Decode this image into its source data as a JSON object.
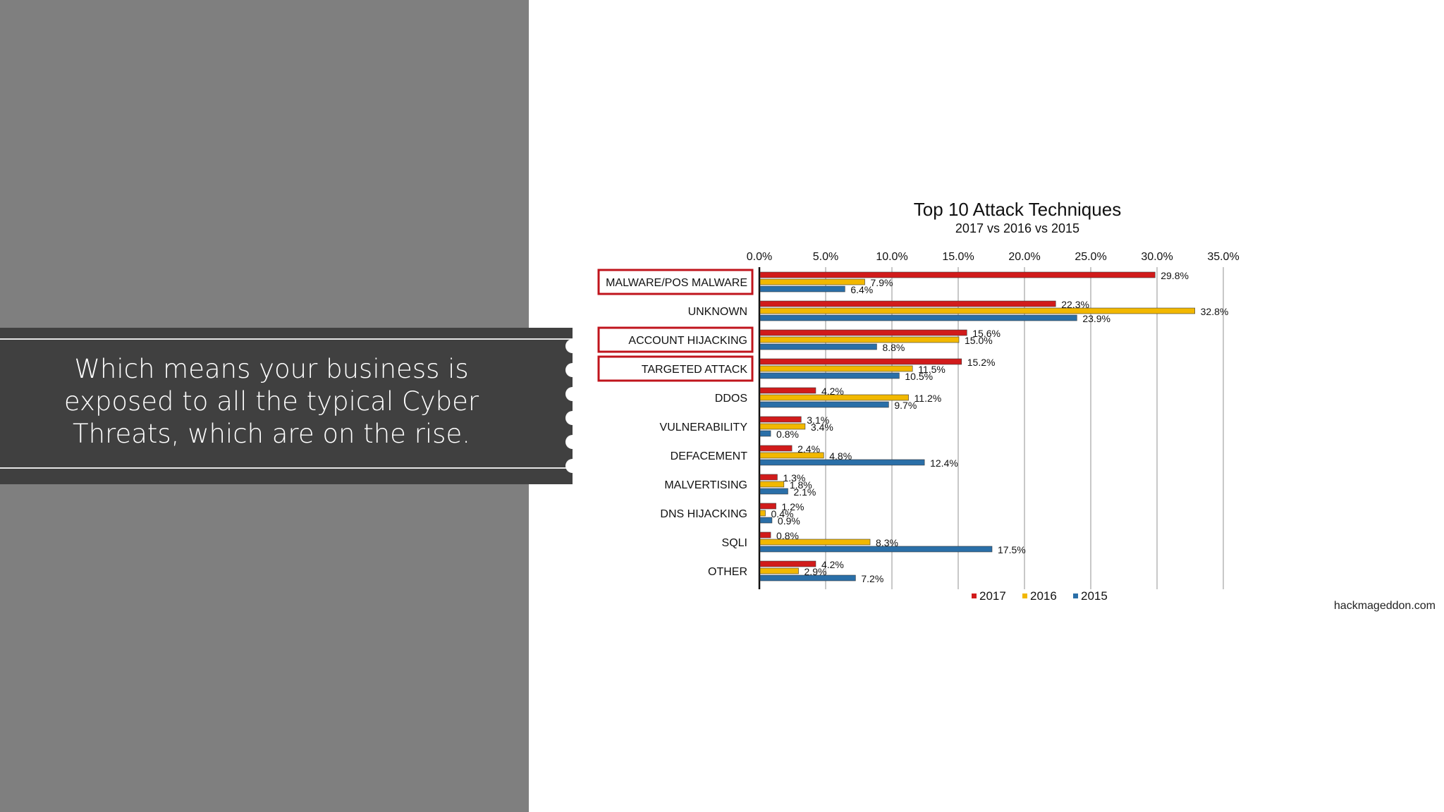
{
  "slide": {
    "banner_text": "Which means your business is\nexposed to all the typical Cyber\nThreats, which are on the rise."
  },
  "colors": {
    "left_panel": "#7f7f7f",
    "banner": "#404040",
    "s2017": "#d11b1b",
    "s2016": "#f2b800",
    "s2015": "#2a6fa8",
    "highlight_box": "#c0141c"
  },
  "chart_data": {
    "type": "bar",
    "orientation": "horizontal",
    "title": "Top 10 Attack Techniques",
    "subtitle": "2017 vs 2016 vs 2015",
    "categories": [
      "MALWARE/POS MALWARE",
      "UNKNOWN",
      "ACCOUNT HIJACKING",
      "TARGETED ATTACK",
      "DDOS",
      "VULNERABILITY",
      "DEFACEMENT",
      "MALVERTISING",
      "DNS HIJACKING",
      "SQLI",
      "OTHER"
    ],
    "highlighted_categories": [
      "MALWARE/POS MALWARE",
      "ACCOUNT HIJACKING",
      "TARGETED ATTACK"
    ],
    "series": [
      {
        "name": "2017",
        "values": [
          29.8,
          22.3,
          15.6,
          15.2,
          4.2,
          3.1,
          2.4,
          1.3,
          1.2,
          0.8,
          4.2
        ]
      },
      {
        "name": "2016",
        "values": [
          7.9,
          32.8,
          15.0,
          11.5,
          11.2,
          3.4,
          4.8,
          1.8,
          0.4,
          8.3,
          2.9
        ]
      },
      {
        "name": "2015",
        "values": [
          6.4,
          23.9,
          8.8,
          10.5,
          9.7,
          0.8,
          12.4,
          2.1,
          0.9,
          17.5,
          7.2
        ]
      }
    ],
    "xlim": [
      0,
      35
    ],
    "xticks": [
      "0.0%",
      "5.0%",
      "10.0%",
      "15.0%",
      "20.0%",
      "25.0%",
      "30.0%",
      "35.0%"
    ],
    "grid": true,
    "legend_position": "bottom",
    "source": "hackmageddon.com"
  }
}
